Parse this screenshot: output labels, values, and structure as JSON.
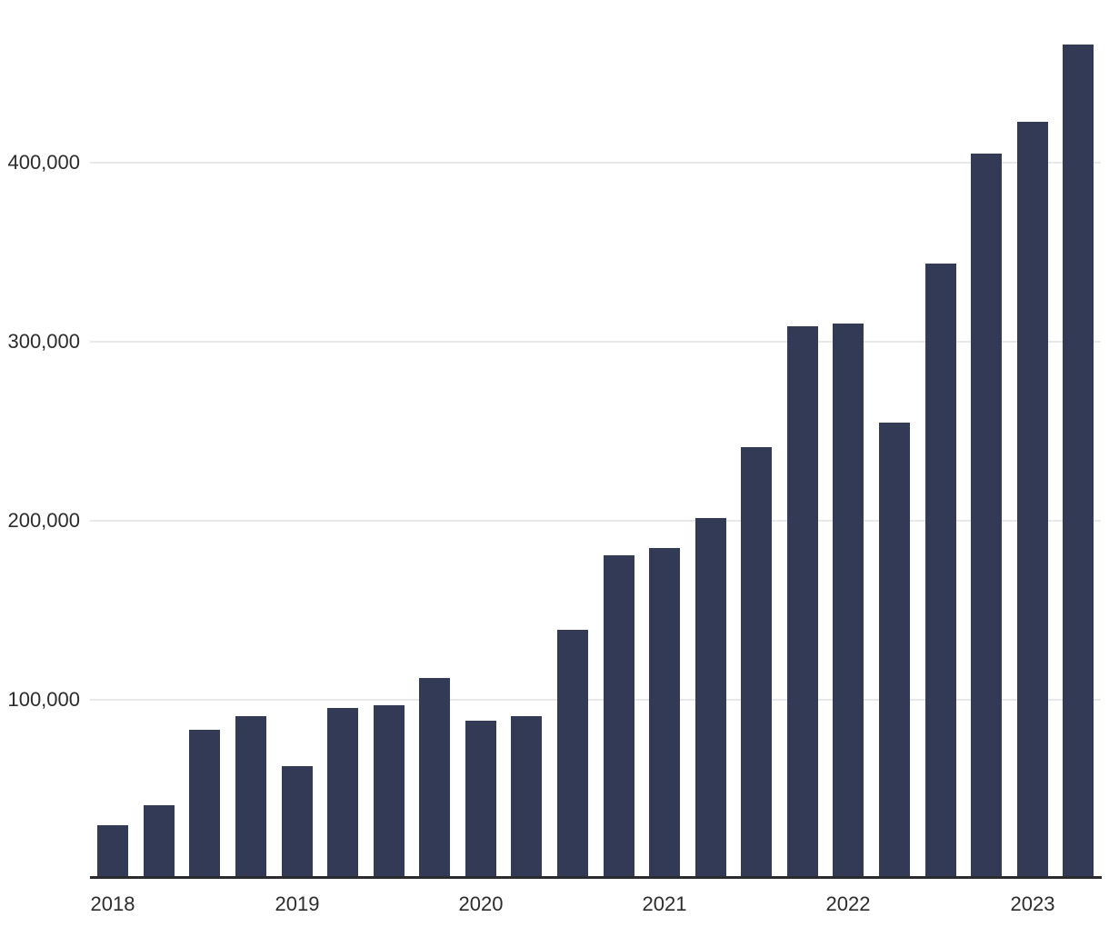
{
  "chart_data": {
    "type": "bar",
    "description": "Quarterly bar chart, no visible title or legend",
    "categories": [
      "2018 Q1",
      "2018 Q2",
      "2018 Q3",
      "2018 Q4",
      "2019 Q1",
      "2019 Q2",
      "2019 Q3",
      "2019 Q4",
      "2020 Q1",
      "2020 Q2",
      "2020 Q3",
      "2020 Q4",
      "2021 Q1",
      "2021 Q2",
      "2021 Q3",
      "2021 Q4",
      "2022 Q1",
      "2022 Q2",
      "2022 Q3",
      "2022 Q4",
      "2023 Q1",
      "2023 Q2"
    ],
    "values": [
      30000,
      41000,
      83500,
      91000,
      63000,
      95200,
      97000,
      112000,
      88400,
      90700,
      139300,
      180600,
      184800,
      201300,
      241300,
      308600,
      310000,
      254700,
      343800,
      405300,
      422900,
      466100
    ],
    "x_axis": {
      "tick_labels": [
        "2018",
        "2019",
        "2020",
        "2021",
        "2022",
        "2023"
      ],
      "tick_bar_indices": [
        0,
        4,
        8,
        12,
        16,
        20
      ]
    },
    "y_axis": {
      "tick_values": [
        100000,
        200000,
        300000,
        400000
      ],
      "tick_labels": [
        "100,000",
        "200,000",
        "300,000",
        "400,000"
      ],
      "range": [
        0,
        480000
      ]
    },
    "grid": "horizontal-only",
    "legend": "none",
    "colors": {
      "bar": "#333a56",
      "gridline": "#e8e8ea",
      "axis_line": "#2a2a31",
      "label_text": "#2c2c2c",
      "background": "#ffffff"
    }
  }
}
